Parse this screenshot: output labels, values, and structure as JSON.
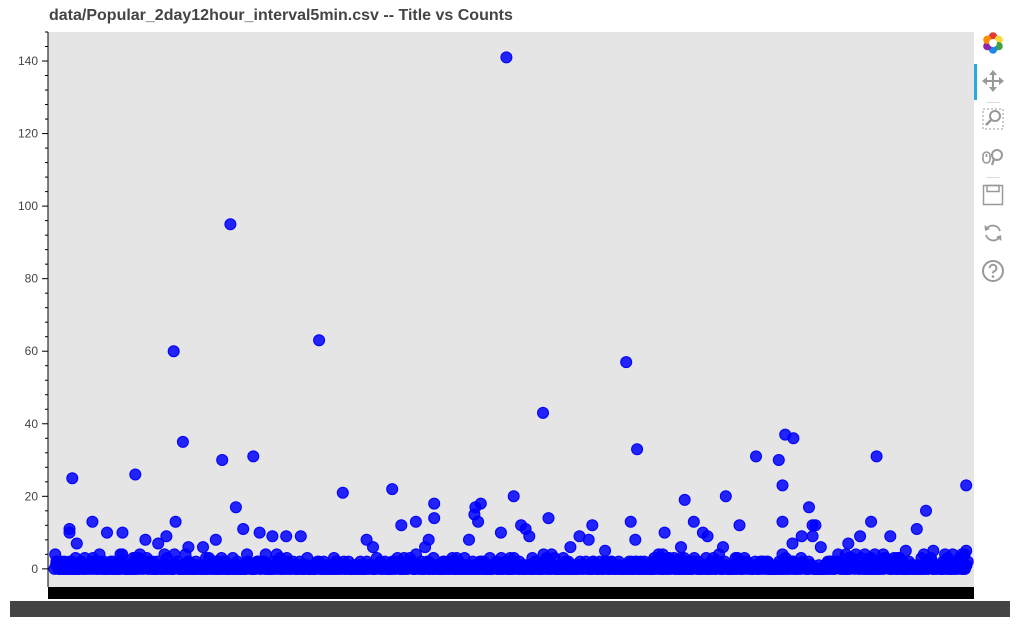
{
  "chart_data": {
    "type": "scatter",
    "title": "data/Popular_2day12hour_interval5min.csv -- Title vs Counts",
    "xlabel": "",
    "ylabel": "",
    "ylim": [
      -5,
      148
    ],
    "x_range": [
      0,
      1000
    ],
    "y_ticks": [
      0,
      20,
      40,
      60,
      80,
      100,
      120,
      140
    ],
    "grid": false,
    "marker_color": "#0000ff",
    "background_color": "#e5e5e5",
    "outliers": [
      {
        "x": 20,
        "y": 25
      },
      {
        "x": 17,
        "y": 10
      },
      {
        "x": 17,
        "y": 11
      },
      {
        "x": 25,
        "y": 7
      },
      {
        "x": 42,
        "y": 13
      },
      {
        "x": 58,
        "y": 10
      },
      {
        "x": 75,
        "y": 10
      },
      {
        "x": 89,
        "y": 26
      },
      {
        "x": 131,
        "y": 60
      },
      {
        "x": 141,
        "y": 35
      },
      {
        "x": 133,
        "y": 13
      },
      {
        "x": 123,
        "y": 9
      },
      {
        "x": 114,
        "y": 7
      },
      {
        "x": 100,
        "y": 8
      },
      {
        "x": 184,
        "y": 30
      },
      {
        "x": 193,
        "y": 95
      },
      {
        "x": 199,
        "y": 17
      },
      {
        "x": 207,
        "y": 11
      },
      {
        "x": 218,
        "y": 31
      },
      {
        "x": 225,
        "y": 10
      },
      {
        "x": 177,
        "y": 8
      },
      {
        "x": 290,
        "y": 63
      },
      {
        "x": 316,
        "y": 21
      },
      {
        "x": 342,
        "y": 8
      },
      {
        "x": 370,
        "y": 22
      },
      {
        "x": 380,
        "y": 12
      },
      {
        "x": 396,
        "y": 13
      },
      {
        "x": 410,
        "y": 8
      },
      {
        "x": 416,
        "y": 18
      },
      {
        "x": 416,
        "y": 14
      },
      {
        "x": 460,
        "y": 15
      },
      {
        "x": 461,
        "y": 17
      },
      {
        "x": 464,
        "y": 13
      },
      {
        "x": 467,
        "y": 18
      },
      {
        "x": 489,
        "y": 10
      },
      {
        "x": 495,
        "y": 141
      },
      {
        "x": 503,
        "y": 20
      },
      {
        "x": 511,
        "y": 12
      },
      {
        "x": 516,
        "y": 11
      },
      {
        "x": 520,
        "y": 9
      },
      {
        "x": 535,
        "y": 43
      },
      {
        "x": 541,
        "y": 14
      },
      {
        "x": 575,
        "y": 9
      },
      {
        "x": 585,
        "y": 8
      },
      {
        "x": 589,
        "y": 12
      },
      {
        "x": 626,
        "y": 57
      },
      {
        "x": 631,
        "y": 13
      },
      {
        "x": 636,
        "y": 8
      },
      {
        "x": 638,
        "y": 33
      },
      {
        "x": 668,
        "y": 10
      },
      {
        "x": 690,
        "y": 19
      },
      {
        "x": 700,
        "y": 13
      },
      {
        "x": 710,
        "y": 10
      },
      {
        "x": 715,
        "y": 9
      },
      {
        "x": 735,
        "y": 20
      },
      {
        "x": 750,
        "y": 12
      },
      {
        "x": 768,
        "y": 31
      },
      {
        "x": 793,
        "y": 30
      },
      {
        "x": 797,
        "y": 13
      },
      {
        "x": 797,
        "y": 23
      },
      {
        "x": 800,
        "y": 37
      },
      {
        "x": 809,
        "y": 36
      },
      {
        "x": 818,
        "y": 9
      },
      {
        "x": 826,
        "y": 17
      },
      {
        "x": 830,
        "y": 12
      },
      {
        "x": 833,
        "y": 12
      },
      {
        "x": 830,
        "y": 9
      },
      {
        "x": 839,
        "y": 6
      },
      {
        "x": 882,
        "y": 9
      },
      {
        "x": 894,
        "y": 13
      },
      {
        "x": 900,
        "y": 31
      },
      {
        "x": 915,
        "y": 9
      },
      {
        "x": 944,
        "y": 11
      },
      {
        "x": 954,
        "y": 16
      },
      {
        "x": 998,
        "y": 23
      },
      {
        "x": 808,
        "y": 7
      },
      {
        "x": 270,
        "y": 9
      },
      {
        "x": 254,
        "y": 9
      },
      {
        "x": 239,
        "y": 9
      },
      {
        "x": 349,
        "y": 6
      },
      {
        "x": 454,
        "y": 8
      },
      {
        "x": 406,
        "y": 6
      },
      {
        "x": 163,
        "y": 6
      },
      {
        "x": 147,
        "y": 6
      },
      {
        "x": 565,
        "y": 6
      },
      {
        "x": 603,
        "y": 5
      },
      {
        "x": 686,
        "y": 6
      },
      {
        "x": 732,
        "y": 6
      },
      {
        "x": 869,
        "y": 7
      },
      {
        "x": 932,
        "y": 5
      },
      {
        "x": 962,
        "y": 5
      },
      {
        "x": 998,
        "y": 5
      }
    ],
    "dense_band": {
      "x_from": 0,
      "x_to": 1000,
      "y_min": 0,
      "y_max": 4,
      "count": 1200
    }
  },
  "toolbar": {
    "tools": [
      {
        "icon": "bokeh-logo-icon"
      },
      {
        "icon": "pan-icon",
        "active": true
      },
      {
        "icon": "box-zoom-icon"
      },
      {
        "icon": "wheel-zoom-icon"
      },
      {
        "icon": "save-icon"
      },
      {
        "icon": "reset-icon"
      },
      {
        "icon": "help-icon"
      }
    ],
    "active_color": "#26aae1"
  }
}
